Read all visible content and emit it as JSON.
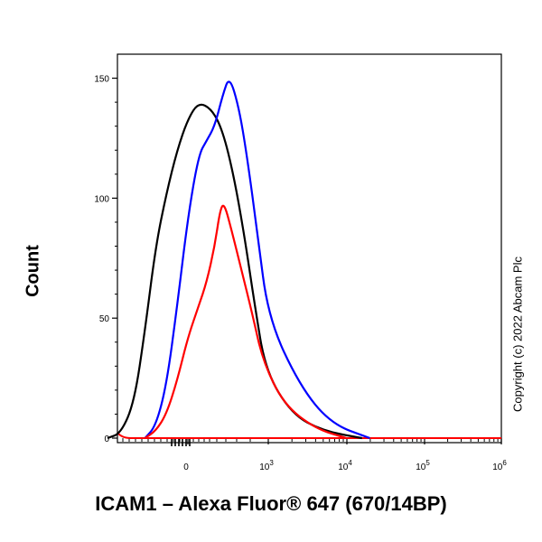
{
  "chart_data": {
    "type": "line",
    "xlabel": "ICAM1 – Alexa Fluor® 647 (670/14BP)",
    "ylabel": "Count",
    "ylim": [
      0,
      160
    ],
    "y_ticks": [
      "0",
      "50",
      "100",
      "150"
    ],
    "x_ticks": [
      {
        "base": "0",
        "exp": ""
      },
      {
        "base": "10",
        "exp": "3"
      },
      {
        "base": "10",
        "exp": "4"
      },
      {
        "base": "10",
        "exp": "5"
      },
      {
        "base": "10",
        "exp": "6"
      }
    ],
    "x_scale": "biexponential",
    "grid": false,
    "series": [
      {
        "color": "#000000",
        "peak_count": 141,
        "points": [
          [
            -3,
            0
          ],
          [
            -2.5,
            2
          ],
          [
            -2,
            15
          ],
          [
            -1.6,
            45
          ],
          [
            -1.2,
            80
          ],
          [
            -0.8,
            102
          ],
          [
            -0.4,
            120
          ],
          [
            0,
            133
          ],
          [
            0.4,
            140
          ],
          [
            0.9,
            137
          ],
          [
            1.3,
            128
          ],
          [
            1.7,
            110
          ],
          [
            2.1,
            85
          ],
          [
            2.5,
            55
          ],
          [
            2.9,
            28
          ],
          [
            3.3,
            10
          ],
          [
            3.7,
            3
          ],
          [
            4.2,
            0
          ]
        ]
      },
      {
        "color": "#0000ff",
        "peak_count": 151,
        "points": [
          [
            -1.6,
            0
          ],
          [
            -1.2,
            5
          ],
          [
            -0.8,
            22
          ],
          [
            -0.4,
            55
          ],
          [
            0,
            92
          ],
          [
            0.4,
            118
          ],
          [
            0.7,
            124
          ],
          [
            1.0,
            130
          ],
          [
            1.3,
            143
          ],
          [
            1.55,
            151
          ],
          [
            1.9,
            138
          ],
          [
            2.2,
            118
          ],
          [
            2.6,
            85
          ],
          [
            3.0,
            50
          ],
          [
            3.4,
            22
          ],
          [
            3.8,
            6
          ],
          [
            4.3,
            0
          ]
        ]
      },
      {
        "color": "#ff0000",
        "peak_count": 98,
        "points": [
          [
            -1.6,
            0
          ],
          [
            -1.2,
            3
          ],
          [
            -0.8,
            10
          ],
          [
            -0.4,
            24
          ],
          [
            0,
            42
          ],
          [
            0.4,
            55
          ],
          [
            0.7,
            65
          ],
          [
            1.0,
            80
          ],
          [
            1.2,
            95
          ],
          [
            1.35,
            98
          ],
          [
            1.6,
            88
          ],
          [
            2.0,
            70
          ],
          [
            2.4,
            52
          ],
          [
            2.8,
            32
          ],
          [
            3.2,
            14
          ],
          [
            3.6,
            4
          ],
          [
            4.0,
            0
          ]
        ]
      }
    ]
  },
  "watermark": "Copyright (c) 2022 Abcam Plc"
}
